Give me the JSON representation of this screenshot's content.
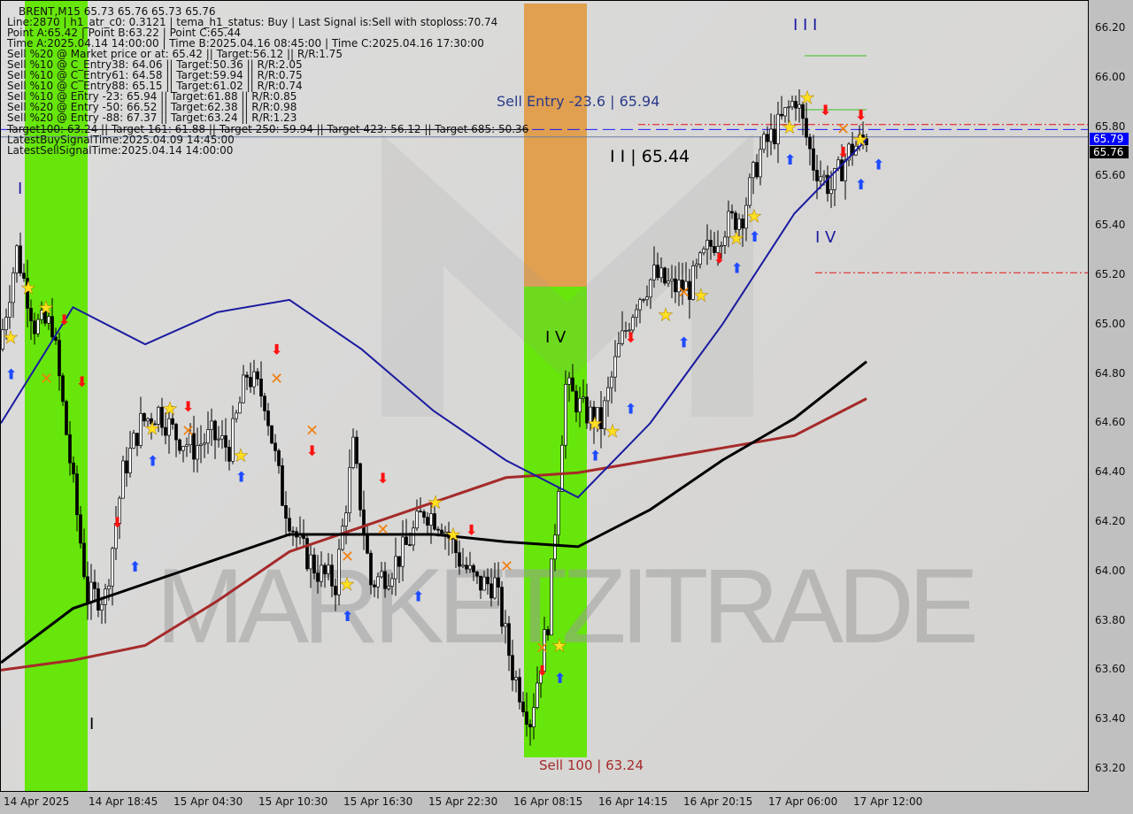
{
  "header": {
    "symbol_line": "BRENT,M15  65.73 65.76 65.73 65.76",
    "lines": [
      "Line:2870 | h1_atr_c0: 0.3121 | tema_h1_status: Buy | Last Signal is:Sell with stoploss:70.74",
      "Point A:65.42 | Point B:63.22 | Point C:65.44",
      "Time A:2025.04.14 14:00:00 | Time B:2025.04.16 08:45:00 | Time C:2025.04.16 17:30:00",
      "Sell %20 @ Market price or at: 65.42 || Target:56.12 || R/R:1.75",
      "Sell %10 @ C_Entry38: 64.06 || Target:50.36 || R/R:2.05",
      "Sell %10 @ C_Entry61: 64.58 || Target:59.94 || R/R:0.75",
      "Sell %10 @ C_Entry88: 65.15 || Target:61.02 || R/R:0.74",
      "Sell %10 @ Entry -23: 65.94 || Target:61.88 || R/R:0.85",
      "Sell %20 @ Entry -50: 66.52 || Target:62.38 || R/R:0.98",
      "Sell %20 @ Entry -88: 67.37 || Target:63.24 || R/R:1.23"
    ],
    "targets_line": "Target100: 63.24 || Target 161: 61.88 || Target 250: 59.94 || Target 423: 56.12 || Target 685: 50.36",
    "latest_buy": "LatestBuySignalTime:2025.04.09 14:45:00",
    "latest_sell": "LatestSellSignalTime:2025.04.14 14:00:00"
  },
  "annotations": {
    "sell_entry": "Sell Entry -23.6 | 65.94",
    "point_c": "I I | 65.44",
    "sell_100": "Sell 100 | 63.24",
    "wave_iv_1": "I V",
    "wave_iii": "I I I",
    "wave_iv_2": "I V",
    "wave_i_top": "I",
    "wave_i_bottom": "I"
  },
  "watermark": "MARKETZITRADE",
  "price_tags": {
    "bid": "65.79",
    "last": "65.76"
  },
  "colors": {
    "bull_zone": "#66e60a",
    "orange_zone": "#e0a050",
    "ma_black": "#000000",
    "ma_red": "#a52a2a",
    "ma_navy": "#1a1aa0",
    "up_arrow": "#1e4bff",
    "down_arrow": "#ff1010",
    "star": "#ffe020",
    "bid_tag": "#0000ff"
  },
  "chart_data": {
    "type": "candlestick",
    "symbol": "BRENT",
    "timeframe": "M15",
    "ylim": [
      63.12,
      66.3
    ],
    "yticks": [
      "66.20",
      "66.00",
      "65.80",
      "65.60",
      "65.40",
      "65.20",
      "65.00",
      "64.80",
      "64.60",
      "64.40",
      "64.20",
      "64.00",
      "63.80",
      "63.60",
      "63.40",
      "63.20"
    ],
    "xticks": [
      "14 Apr 2025",
      "14 Apr 18:45",
      "15 Apr 04:30",
      "15 Apr 10:30",
      "15 Apr 16:30",
      "15 Apr 22:30",
      "16 Apr 08:15",
      "16 Apr 14:15",
      "16 Apr 20:15",
      "17 Apr 06:00",
      "17 Apr 12:00"
    ],
    "close_path": [
      64.9,
      65.3,
      65.0,
      65.0,
      64.45,
      63.9,
      63.9,
      64.4,
      64.6,
      64.65,
      64.55,
      64.5,
      64.55,
      64.5,
      64.8,
      64.7,
      64.3,
      64.1,
      64.0,
      63.95,
      64.5,
      63.95,
      64.0,
      64.1,
      64.25,
      64.2,
      64.05,
      63.95,
      63.95,
      63.6,
      63.4,
      63.8,
      64.75,
      64.65,
      64.6,
      64.9,
      65.1,
      65.2,
      65.15,
      65.15,
      65.3,
      65.4,
      65.45,
      65.7,
      65.8,
      65.92,
      65.65,
      65.55,
      65.7,
      65.76
    ],
    "ma_black": [
      63.63,
      63.85,
      63.95,
      64.05,
      64.15,
      64.15,
      64.15,
      64.12,
      64.1,
      64.25,
      64.45,
      64.62,
      64.85
    ],
    "ma_red": [
      63.6,
      63.64,
      63.7,
      63.88,
      64.08,
      64.18,
      64.28,
      64.38,
      64.4,
      64.45,
      64.5,
      64.55,
      64.7
    ],
    "ma_navy": [
      64.6,
      65.07,
      64.92,
      65.05,
      65.1,
      64.9,
      64.65,
      64.45,
      64.3,
      64.6,
      65.0,
      65.45,
      65.75
    ],
    "levels": [
      {
        "price": 65.79,
        "style": "blue-dashed"
      },
      {
        "price": 65.76,
        "style": "gray-solid"
      },
      {
        "price": 65.81,
        "style": "red-dashdot"
      },
      {
        "price": 65.21,
        "style": "red-dashdot"
      }
    ],
    "markers": [
      {
        "i": 1,
        "price": 65.15,
        "type": "star"
      },
      {
        "i": 2,
        "price": 65.07,
        "type": "star"
      },
      {
        "i": 0,
        "price": 64.95,
        "type": "star"
      },
      {
        "i": 8,
        "price": 64.58,
        "type": "star"
      },
      {
        "i": 9,
        "price": 64.66,
        "type": "star"
      },
      {
        "i": 13,
        "price": 64.47,
        "type": "star"
      },
      {
        "i": 19,
        "price": 63.95,
        "type": "star"
      },
      {
        "i": 24,
        "price": 64.28,
        "type": "star"
      },
      {
        "i": 25,
        "price": 64.15,
        "type": "star"
      },
      {
        "i": 31,
        "price": 63.7,
        "type": "star"
      },
      {
        "i": 33,
        "price": 64.6,
        "type": "star"
      },
      {
        "i": 34,
        "price": 64.57,
        "type": "star"
      },
      {
        "i": 37,
        "price": 65.04,
        "type": "star"
      },
      {
        "i": 39,
        "price": 65.12,
        "type": "star"
      },
      {
        "i": 41,
        "price": 65.35,
        "type": "star"
      },
      {
        "i": 42,
        "price": 65.44,
        "type": "star"
      },
      {
        "i": 44,
        "price": 65.8,
        "type": "star"
      },
      {
        "i": 45,
        "price": 65.92,
        "type": "star"
      },
      {
        "i": 48,
        "price": 65.75,
        "type": "star"
      },
      {
        "i": 0,
        "price": 64.8,
        "type": "up"
      },
      {
        "i": 7,
        "price": 64.02,
        "type": "up"
      },
      {
        "i": 8,
        "price": 64.45,
        "type": "up"
      },
      {
        "i": 13,
        "price": 64.45,
        "type": "up"
      },
      {
        "i": 19,
        "price": 63.82,
        "type": "up"
      },
      {
        "i": 23,
        "price": 63.9,
        "type": "up"
      },
      {
        "i": 31,
        "price": 63.57,
        "type": "up"
      },
      {
        "i": 33,
        "price": 64.47,
        "type": "up"
      },
      {
        "i": 35,
        "price": 64.66,
        "type": "up"
      },
      {
        "i": 38,
        "price": 64.93,
        "type": "up"
      },
      {
        "i": 41,
        "price": 65.23,
        "type": "up"
      },
      {
        "i": 42,
        "price": 65.38,
        "type": "up"
      },
      {
        "i": 44,
        "price": 65.67,
        "type": "up"
      },
      {
        "i": 48,
        "price": 65.57,
        "type": "up"
      },
      {
        "i": 49,
        "price": 65.65,
        "type": "up"
      },
      {
        "i": 3,
        "price": 65.02,
        "type": "down"
      },
      {
        "i": 4,
        "price": 64.77,
        "type": "down"
      },
      {
        "i": 6,
        "price": 64.2,
        "type": "down"
      },
      {
        "i": 10,
        "price": 64.67,
        "type": "down"
      },
      {
        "i": 15,
        "price": 64.9,
        "type": "down"
      },
      {
        "i": 17,
        "price": 64.49,
        "type": "down"
      },
      {
        "i": 21,
        "price": 64.38,
        "type": "down"
      },
      {
        "i": 26,
        "price": 64.17,
        "type": "down"
      },
      {
        "i": 30,
        "price": 63.6,
        "type": "down"
      },
      {
        "i": 35,
        "price": 64.95,
        "type": "down"
      },
      {
        "i": 40,
        "price": 65.27,
        "type": "down"
      },
      {
        "i": 46,
        "price": 65.87,
        "type": "down"
      },
      {
        "i": 47,
        "price": 65.7,
        "type": "down"
      },
      {
        "i": 48,
        "price": 65.85,
        "type": "down"
      },
      {
        "i": 2,
        "price": 64.78,
        "type": "cross"
      },
      {
        "i": 10,
        "price": 64.57,
        "type": "cross"
      },
      {
        "i": 15,
        "price": 64.78,
        "type": "cross"
      },
      {
        "i": 17,
        "price": 64.42,
        "type": "cross"
      },
      {
        "i": 19,
        "price": 64.06,
        "type": "cross"
      },
      {
        "i": 21,
        "price": 64.17,
        "type": "cross"
      },
      {
        "i": 28,
        "price": 64.02,
        "type": "cross"
      },
      {
        "i": 30,
        "price": 63.69,
        "type": "cross"
      },
      {
        "i": 38,
        "price": 65.13,
        "type": "cross"
      },
      {
        "i": 47,
        "price": 65.64,
        "type": "cross"
      }
    ]
  }
}
